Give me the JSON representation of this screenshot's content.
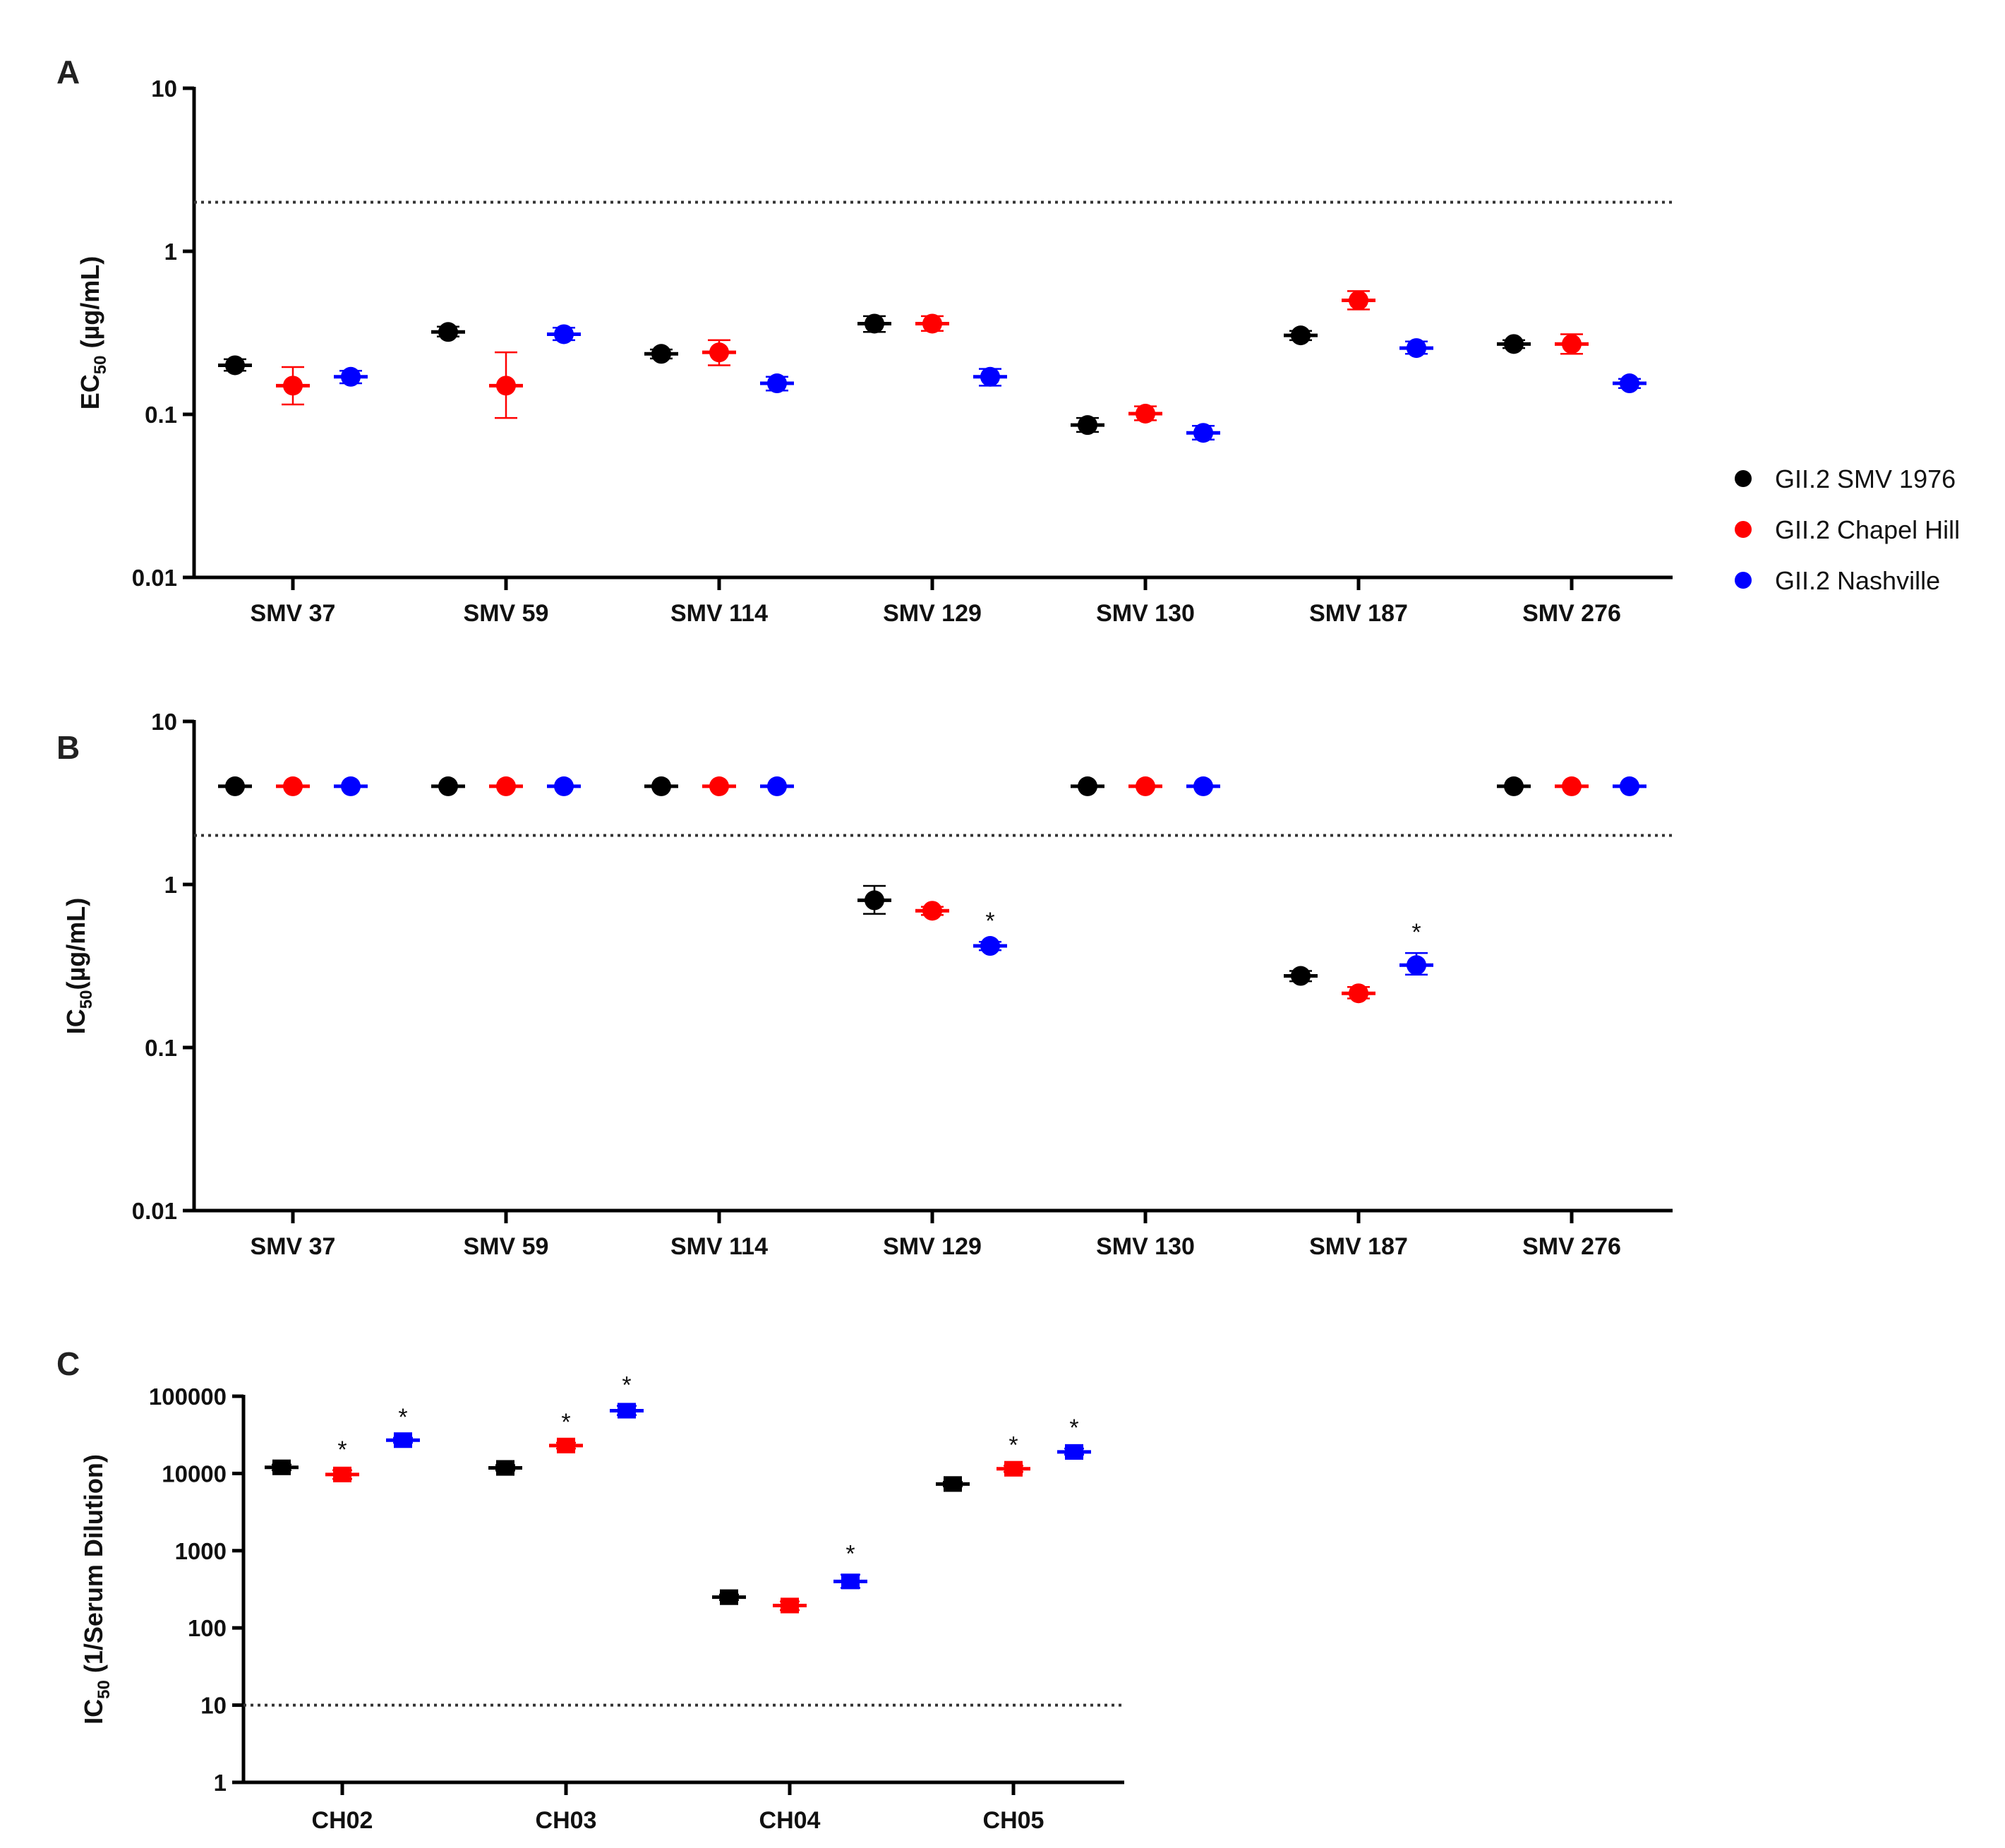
{
  "colors": {
    "GII.2 SMV 1976": "#000000",
    "GII.2 Chapel Hill": "#ff0000",
    "GII.2 Nashville": "#0000ff"
  },
  "legend": {
    "position": "right",
    "entries": [
      "GII.2 SMV 1976",
      "GII.2 Chapel Hill",
      "GII.2 Nashville"
    ]
  },
  "chart_data": [
    {
      "panel": "A",
      "type": "scatter",
      "yscale": "log",
      "ylabel_main": "EC",
      "ylabel_sub": "50",
      "ylabel_rest": " (µg/mL)",
      "ylim": [
        0.01,
        10
      ],
      "yticks": [
        10,
        1,
        0.1,
        0.01
      ],
      "ytick_labels": [
        "10",
        "1",
        "0.1",
        "0.01"
      ],
      "threshold": 2,
      "categories": [
        "SMV 37",
        "SMV 59",
        "SMV 114",
        "SMV 129",
        "SMV 130",
        "SMV 187",
        "SMV 276"
      ],
      "marker": "circle",
      "series": [
        {
          "name": "GII.2 SMV 1976",
          "values": [
            0.2,
            0.32,
            0.235,
            0.36,
            0.086,
            0.305,
            0.27
          ],
          "err_low": [
            0.185,
            0.3,
            0.22,
            0.32,
            0.078,
            0.285,
            0.255
          ],
          "err_high": [
            0.218,
            0.345,
            0.25,
            0.4,
            0.095,
            0.325,
            0.285
          ]
        },
        {
          "name": "GII.2 Chapel Hill",
          "values": [
            0.15,
            0.15,
            0.24,
            0.36,
            0.101,
            0.5,
            0.27
          ],
          "err_low": [
            0.115,
            0.095,
            0.2,
            0.325,
            0.092,
            0.44,
            0.235
          ],
          "err_high": [
            0.195,
            0.24,
            0.285,
            0.4,
            0.112,
            0.57,
            0.31
          ]
        },
        {
          "name": "GII.2 Nashville",
          "values": [
            0.17,
            0.31,
            0.155,
            0.17,
            0.077,
            0.255,
            0.155
          ],
          "err_low": [
            0.155,
            0.285,
            0.14,
            0.15,
            0.07,
            0.235,
            0.145
          ],
          "err_high": [
            0.185,
            0.34,
            0.17,
            0.19,
            0.085,
            0.28,
            0.165
          ]
        }
      ]
    },
    {
      "panel": "B",
      "type": "scatter",
      "yscale": "log",
      "ylabel_main": "IC",
      "ylabel_sub": "50",
      "ylabel_rest": "(µg/mL)",
      "ylim": [
        0.01,
        10
      ],
      "yticks": [
        10,
        1,
        0.1,
        0.01
      ],
      "ytick_labels": [
        "10",
        "1",
        "0.1",
        "0.01"
      ],
      "threshold": 2,
      "categories": [
        "SMV 37",
        "SMV 59",
        "SMV 114",
        "SMV 129",
        "SMV 130",
        "SMV 187",
        "SMV 276"
      ],
      "marker": "circle",
      "series": [
        {
          "name": "GII.2 SMV 1976",
          "values": [
            4,
            4,
            4,
            0.8,
            4,
            0.275,
            4
          ],
          "err_low": [
            4,
            4,
            4,
            0.66,
            4,
            0.255,
            4
          ],
          "err_high": [
            4,
            4,
            4,
            0.98,
            4,
            0.295,
            4
          ]
        },
        {
          "name": "GII.2 Chapel Hill",
          "values": [
            4,
            4,
            4,
            0.69,
            4,
            0.215,
            4
          ],
          "err_low": [
            4,
            4,
            4,
            0.65,
            4,
            0.2,
            4
          ],
          "err_high": [
            4,
            4,
            4,
            0.73,
            4,
            0.235,
            4
          ]
        },
        {
          "name": "GII.2 Nashville",
          "values": [
            4,
            4,
            4,
            0.42,
            4,
            0.32,
            4
          ],
          "err_low": [
            4,
            4,
            4,
            0.395,
            4,
            0.28,
            4
          ],
          "err_high": [
            4,
            4,
            4,
            0.445,
            4,
            0.38,
            4
          ]
        }
      ],
      "annotations": [
        {
          "category": "SMV 129",
          "series": "GII.2 Nashville",
          "text": "*"
        },
        {
          "category": "SMV 187",
          "series": "GII.2 Nashville",
          "text": "*"
        }
      ]
    },
    {
      "panel": "C",
      "type": "scatter",
      "yscale": "log",
      "ylabel_main": "IC",
      "ylabel_sub": "50",
      "ylabel_rest": " (1/Serum Dilution)",
      "ylim": [
        1,
        100000
      ],
      "yticks": [
        100000,
        10000,
        1000,
        100,
        10,
        1
      ],
      "ytick_labels": [
        "100000",
        "10000",
        "1000",
        "100",
        "10",
        "1"
      ],
      "threshold": 10,
      "categories": [
        "CH02",
        "CH03",
        "CH04",
        "CH05"
      ],
      "marker": "square",
      "series": [
        {
          "name": "GII.2 SMV 1976",
          "values": [
            12000,
            11800,
            250,
            7300
          ],
          "err_low": [
            11000,
            10900,
            230,
            6800
          ],
          "err_high": [
            13000,
            12800,
            270,
            7800
          ]
        },
        {
          "name": "GII.2 Chapel Hill",
          "values": [
            9700,
            23000,
            195,
            11500
          ],
          "err_low": [
            8500,
            21000,
            170,
            10500
          ],
          "err_high": [
            11000,
            25000,
            220,
            12600
          ]
        },
        {
          "name": "GII.2 Nashville",
          "values": [
            27000,
            65000,
            400,
            19000
          ],
          "err_low": [
            25000,
            57000,
            330,
            17500
          ],
          "err_high": [
            29000,
            75000,
            490,
            21000
          ]
        }
      ],
      "annotations": [
        {
          "category": "CH02",
          "series": "GII.2 Chapel Hill",
          "text": "*"
        },
        {
          "category": "CH02",
          "series": "GII.2 Nashville",
          "text": "*"
        },
        {
          "category": "CH03",
          "series": "GII.2 Chapel Hill",
          "text": "*"
        },
        {
          "category": "CH03",
          "series": "GII.2 Nashville",
          "text": "*"
        },
        {
          "category": "CH04",
          "series": "GII.2 Nashville",
          "text": "*"
        },
        {
          "category": "CH05",
          "series": "GII.2 Chapel Hill",
          "text": "*"
        },
        {
          "category": "CH05",
          "series": "GII.2 Nashville",
          "text": "*"
        }
      ]
    }
  ]
}
